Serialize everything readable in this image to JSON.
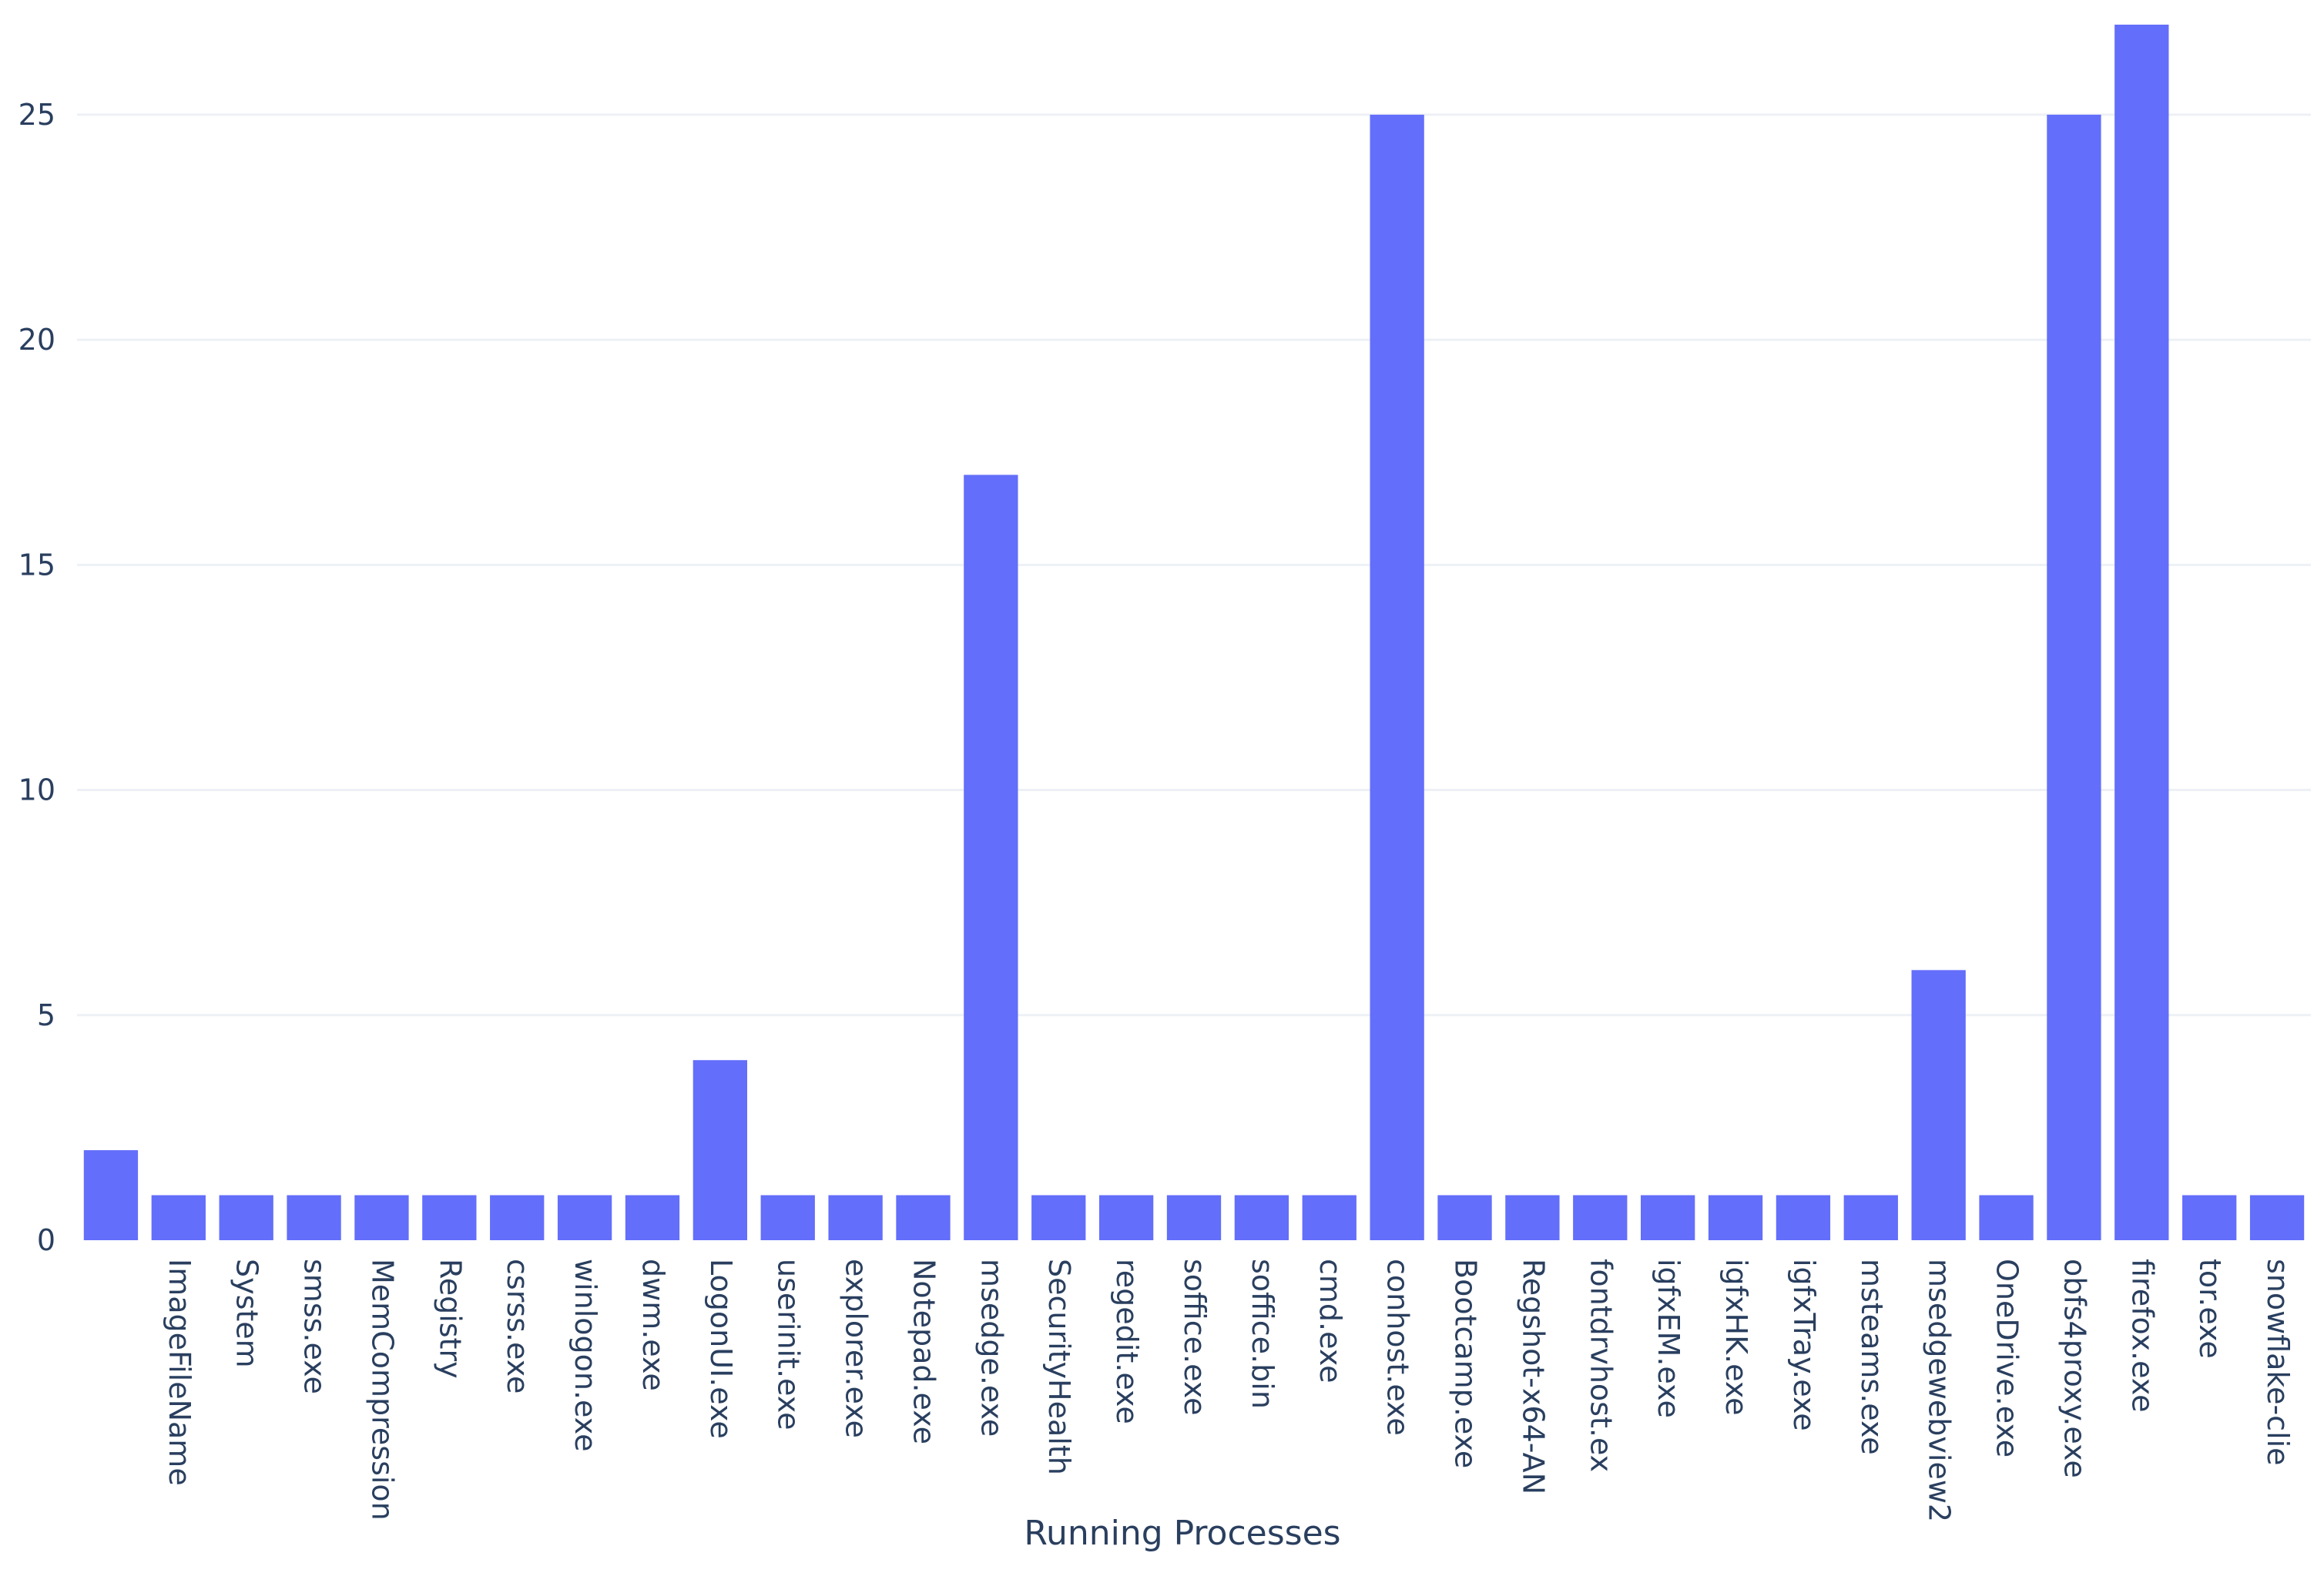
{
  "chart_data": {
    "type": "bar",
    "xlabel": "Running Processes",
    "ylabel": "",
    "ylim": [
      0,
      27
    ],
    "y_ticks": [
      0,
      5,
      10,
      15,
      20,
      25
    ],
    "grid": true,
    "bar_color": "#636efa",
    "categories": [
      "",
      "ImageFileName",
      "System",
      "smss.exe",
      "MemCompression",
      "Registry",
      "csrss.exe",
      "winlogon.exe",
      "dwm.exe",
      "LogonUI.exe",
      "userinit.exe",
      "explorer.exe",
      "Notepad.exe",
      "msedge.exe",
      "SecurityHealth",
      "regedit.exe",
      "soffice.exe",
      "soffice.bin",
      "cmd.exe",
      "conhost.exe",
      "Bootcamp.exe",
      "Regshot-x64-AN",
      "fontdrvhost.ex",
      "igfxEM.exe",
      "igfxHK.exe",
      "igfxTray.exe",
      "msteams.exe",
      "msedgewebview2",
      "OneDrive.exe",
      "obfs4proxy.exe",
      "firefox.exe",
      "tor.exe",
      "snowflake-clie"
    ],
    "values": [
      2,
      1,
      1,
      1,
      1,
      1,
      1,
      1,
      1,
      4,
      1,
      1,
      1,
      17,
      1,
      1,
      1,
      1,
      1,
      25,
      1,
      1,
      1,
      1,
      1,
      1,
      1,
      6,
      1,
      25,
      27,
      1,
      1
    ]
  }
}
